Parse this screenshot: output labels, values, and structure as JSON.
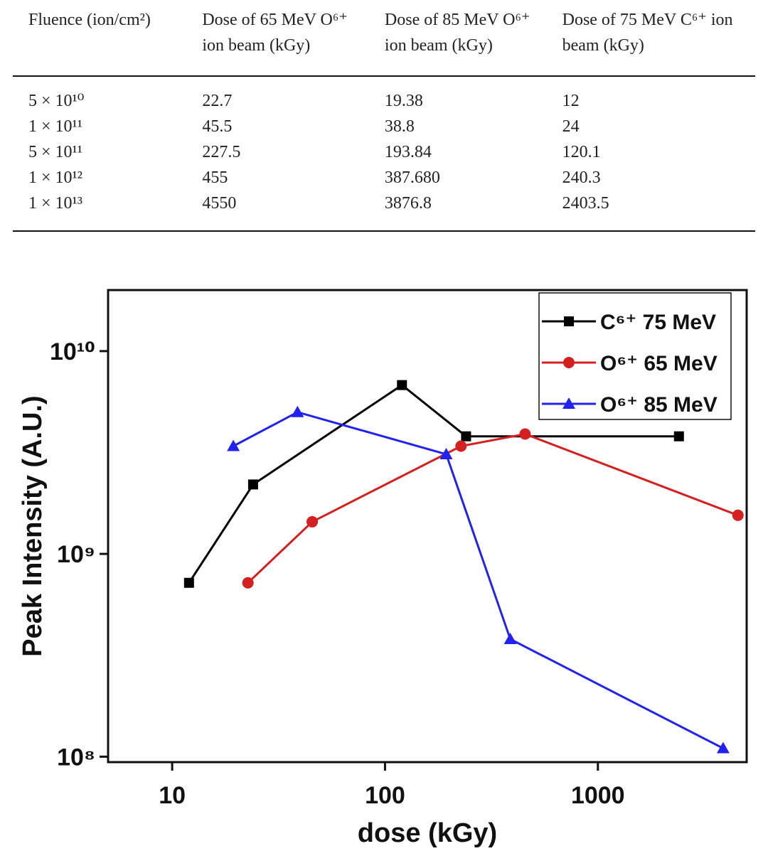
{
  "table": {
    "headers": [
      "Fluence (ion/​cm²)",
      "Dose of 65 MeV O⁶⁺ ion beam (kGy)",
      "Dose of 85 MeV O⁶⁺ ion beam (kGy)",
      "Dose of 75 MeV C⁶⁺ ion beam (kGy)"
    ],
    "rows": [
      [
        "5 × 10¹⁰",
        "22.7",
        "19.38",
        "12"
      ],
      [
        "1 × 10¹¹",
        "45.5",
        "38.8",
        "24"
      ],
      [
        "5 × 10¹¹",
        "227.5",
        "193.84",
        "120.1"
      ],
      [
        "1 × 10¹²",
        "455",
        "387.680",
        "240.3"
      ],
      [
        "1 × 10¹³",
        "4550",
        "3876.8",
        "2403.5"
      ]
    ]
  },
  "chart_data": {
    "type": "line",
    "x_label": "dose (kGy)",
    "y_label": "Peak Intensity (A.U.)",
    "xscale": "log",
    "yscale": "log",
    "xlim": [
      5,
      5000
    ],
    "ylim": [
      94000000,
      20000000000
    ],
    "xticks": [
      10,
      100,
      1000
    ],
    "yticks": [
      {
        "value": 100000000,
        "label": "10⁸"
      },
      {
        "value": 1000000000,
        "label": "10⁹"
      },
      {
        "value": 10000000000,
        "label": "10¹⁰"
      }
    ],
    "legend": "upper right",
    "series": [
      {
        "name": "C⁶⁺ 75 MeV",
        "color": "#000000",
        "marker": "square",
        "x": [
          12,
          24,
          120.1,
          240.3,
          2403.5
        ],
        "values": [
          720000000,
          2200000000,
          6800000000,
          3800000000,
          3800000000
        ]
      },
      {
        "name": "O⁶⁺ 65 MeV",
        "color": "#d42020",
        "marker": "circle",
        "x": [
          22.7,
          45.5,
          227.5,
          455,
          4550
        ],
        "values": [
          720000000,
          1440000000,
          3400000000,
          3900000000,
          1550000000
        ]
      },
      {
        "name": "O⁶⁺ 85 MeV",
        "color": "#2222ee",
        "marker": "triangle",
        "x": [
          19.38,
          38.8,
          193.84,
          387.68,
          3876.8
        ],
        "values": [
          3400000000,
          5000000000,
          3100000000,
          380000000,
          110000000
        ]
      }
    ]
  }
}
